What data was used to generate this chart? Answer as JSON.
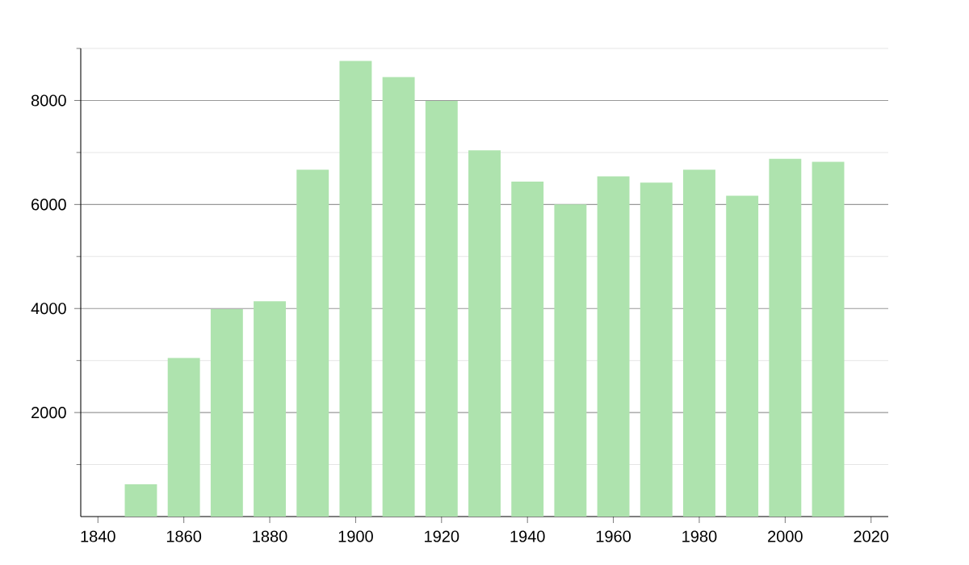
{
  "chart_data": {
    "type": "bar",
    "x": [
      1850,
      1860,
      1870,
      1880,
      1890,
      1900,
      1910,
      1920,
      1930,
      1940,
      1950,
      1960,
      1970,
      1980,
      1990,
      2000,
      2010
    ],
    "values": [
      620,
      3050,
      3990,
      4140,
      6670,
      8760,
      8450,
      7990,
      7040,
      6440,
      6000,
      6540,
      6420,
      6670,
      6170,
      6880,
      6820
    ],
    "color": "#aee3ae",
    "xlim": [
      1836,
      2024
    ],
    "ylim": [
      0,
      9000
    ],
    "xticks": [
      1840,
      1860,
      1880,
      1900,
      1920,
      1940,
      1960,
      1980,
      2000,
      2020
    ],
    "yticks": [
      {
        "value": 1000,
        "label": null
      },
      2000,
      {
        "value": 3000,
        "label": null
      },
      4000,
      {
        "value": 5000,
        "label": null
      },
      6000,
      {
        "value": 7000,
        "label": null
      },
      8000,
      {
        "value": 9000,
        "label": null
      }
    ],
    "grid": "y"
  }
}
